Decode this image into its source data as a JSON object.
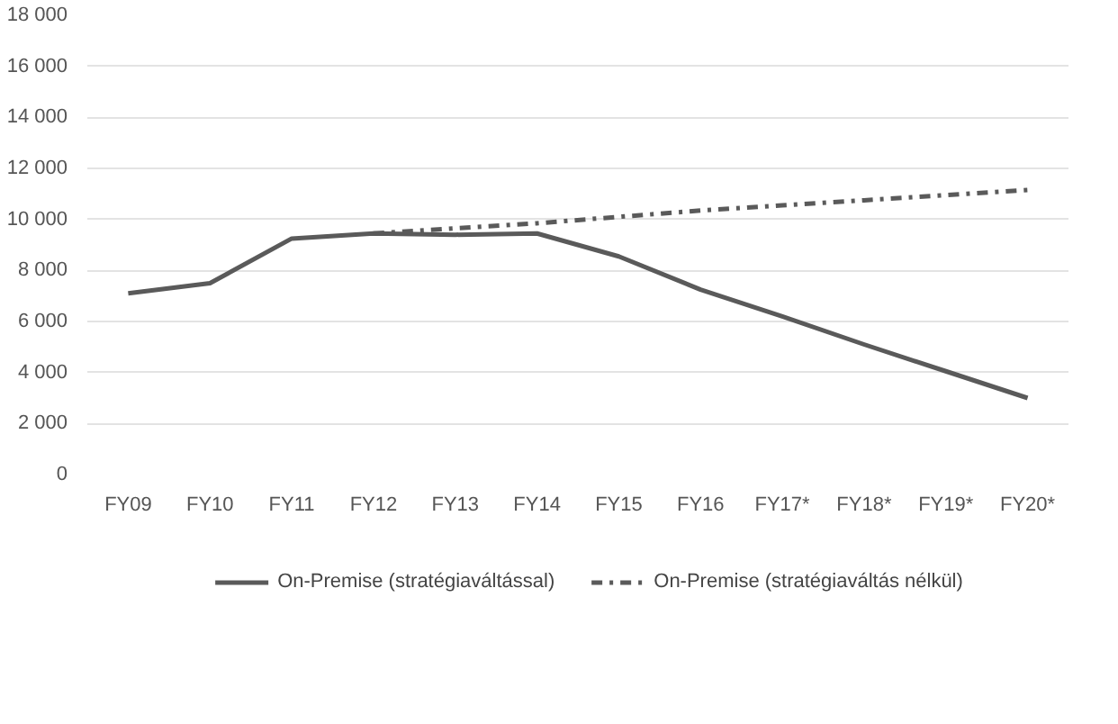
{
  "chart_data": {
    "type": "line",
    "categories": [
      "FY09",
      "FY10",
      "FY11",
      "FY12",
      "FY13",
      "FY14",
      "FY15",
      "FY16",
      "FY17*",
      "FY18*",
      "FY19*",
      "FY20*"
    ],
    "series": [
      {
        "name": "On-Premise (stratégiaváltással)",
        "color": "#5a5a5a",
        "line_style": "solid",
        "values": [
          7100,
          7500,
          9250,
          9450,
          9400,
          9450,
          8550,
          7250,
          6200,
          5100,
          4050,
          3000
        ]
      },
      {
        "name": "On-Premise (stratégiaváltás nélkül)",
        "color": "#5a5a5a",
        "line_style": "dashdot",
        "values": [
          null,
          null,
          null,
          9450,
          9650,
          9850,
          10100,
          10350,
          10550,
          10750,
          10950,
          11150
        ]
      }
    ],
    "ylim": [
      0,
      18000
    ],
    "yticks": [
      {
        "value": 0,
        "label": "0"
      },
      {
        "value": 2000,
        "label": "2 000"
      },
      {
        "value": 4000,
        "label": "4 000"
      },
      {
        "value": 6000,
        "label": "6 000"
      },
      {
        "value": 8000,
        "label": "8 000"
      },
      {
        "value": 10000,
        "label": "10 000"
      },
      {
        "value": 12000,
        "label": "12 000"
      },
      {
        "value": 14000,
        "label": "14 000"
      },
      {
        "value": 16000,
        "label": "16 000"
      },
      {
        "value": 18000,
        "label": "18 000"
      }
    ],
    "grid": "y",
    "legend": "bottom",
    "marker": "none"
  }
}
